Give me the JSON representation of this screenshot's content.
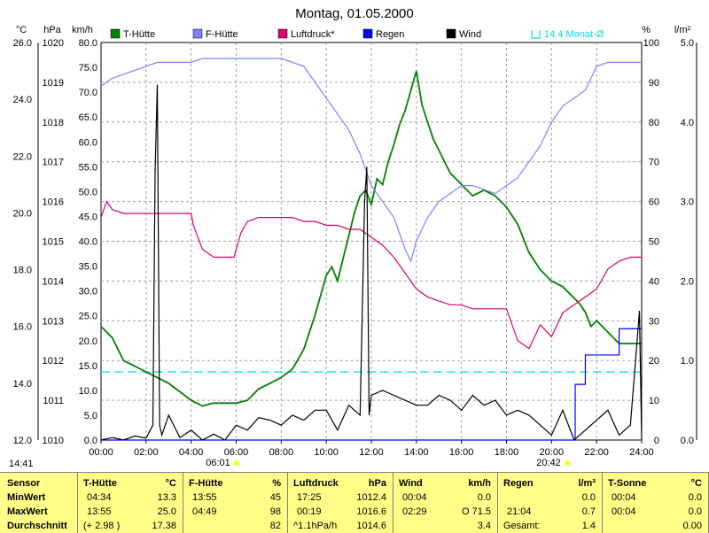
{
  "title": "Montag, 01.05.2000",
  "units": {
    "temp": "°C",
    "pressure": "hPa",
    "speed": "km/h",
    "humidity": "%",
    "rain": "l/m²"
  },
  "time_label": "14:41",
  "sunrise": "06:01",
  "sunset": "20:42",
  "colors": {
    "t_huette": "#008000",
    "f_huette": "#8080ff",
    "luftdruck": "#d8006c",
    "regen": "#0000ff",
    "wind": "#000000",
    "mean_line": "#00e0e0",
    "sun": "#ffff00",
    "summary_bg": "#ffff88"
  },
  "legend": [
    {
      "label": "T-Hütte",
      "color": "#008000"
    },
    {
      "label": "F-Hütte",
      "color": "#8080ff"
    },
    {
      "label": "Luftdruck*",
      "color": "#d8006c"
    },
    {
      "label": "Regen",
      "color": "#0000ff"
    },
    {
      "label": "Wind",
      "color": "#000000"
    },
    {
      "label": "14.4 Monat-Ø",
      "color": "#00e0e0"
    }
  ],
  "chart_data": {
    "type": "line",
    "x_ticks": [
      "00:00",
      "02:00",
      "04:00",
      "06:00",
      "08:00",
      "10:00",
      "12:00",
      "14:00",
      "16:00",
      "18:00",
      "20:00",
      "22:00",
      "24:00"
    ],
    "axes": {
      "temp_ticks": [
        "26.0",
        "24.0",
        "22.0",
        "20.0",
        "18.0",
        "16.0",
        "14.0",
        "12.0"
      ],
      "pressure_ticks": [
        "1020",
        "1019",
        "1018",
        "1017",
        "1016",
        "1015",
        "1014",
        "1013",
        "1012",
        "1011",
        "1010"
      ],
      "speed_ticks": [
        "80.0",
        "75.0",
        "70.0",
        "65.0",
        "60.0",
        "55.0",
        "50.0",
        "45.0",
        "40.0",
        "35.0",
        "30.0",
        "25.0",
        "20.0",
        "15.0",
        "10.0",
        "5.0",
        "0.0"
      ],
      "humidity_ticks": [
        "100",
        "90",
        "80",
        "70",
        "60",
        "50",
        "40",
        "30",
        "20",
        "10",
        "0"
      ],
      "rain_ticks": [
        "5.0",
        "4.0",
        "3.0",
        "2.0",
        "1.0",
        "0.0"
      ],
      "temp_range": [
        12,
        26
      ],
      "pressure_range": [
        1010,
        1020
      ],
      "speed_range": [
        0,
        80
      ],
      "humidity_range": [
        0,
        100
      ],
      "rain_range": [
        0,
        5
      ]
    },
    "grid": true,
    "monthly_mean_temp": 14.4,
    "series": [
      {
        "name": "T-Hütte",
        "axis": "temp",
        "color": "#008000",
        "x": [
          0,
          0.5,
          1,
          1.5,
          2,
          2.5,
          3,
          3.5,
          4,
          4.5,
          5,
          5.5,
          6,
          6.5,
          7,
          7.5,
          8,
          8.5,
          9,
          9.5,
          10,
          10.25,
          10.5,
          10.75,
          11,
          11.25,
          11.5,
          11.75,
          12,
          12.25,
          12.5,
          12.75,
          13,
          13.25,
          13.5,
          13.75,
          14,
          14.25,
          14.5,
          14.75,
          15,
          15.5,
          16,
          16.5,
          17,
          17.5,
          18,
          18.5,
          19,
          19.5,
          20,
          20.5,
          21,
          21.25,
          21.5,
          21.75,
          22,
          22.5,
          23,
          23.5,
          24
        ],
        "y": [
          16.0,
          15.6,
          14.8,
          14.6,
          14.4,
          14.2,
          14.0,
          13.7,
          13.4,
          13.2,
          13.3,
          13.3,
          13.3,
          13.4,
          13.8,
          14.0,
          14.2,
          14.5,
          15.2,
          16.4,
          17.8,
          18.1,
          17.6,
          18.4,
          19.2,
          20.0,
          20.6,
          20.8,
          20.3,
          21.2,
          21.0,
          21.8,
          22.4,
          23.1,
          23.6,
          24.3,
          25.0,
          23.8,
          23.2,
          22.6,
          22.2,
          21.4,
          21.0,
          20.6,
          20.8,
          20.6,
          20.2,
          19.6,
          18.6,
          18.0,
          17.6,
          17.4,
          17.0,
          16.8,
          16.5,
          16.0,
          16.2,
          15.8,
          15.4,
          15.4,
          15.4
        ]
      },
      {
        "name": "F-Hütte",
        "axis": "humidity",
        "color": "#8080ff",
        "x": [
          0,
          0.5,
          1,
          1.5,
          2,
          2.5,
          3,
          3.5,
          4,
          4.5,
          5,
          5.5,
          6,
          6.5,
          7,
          7.5,
          8,
          8.5,
          9,
          9.5,
          10,
          10.5,
          11,
          11.5,
          12,
          12.5,
          13,
          13.25,
          13.5,
          13.75,
          14,
          14.5,
          15,
          15.5,
          16,
          16.5,
          17,
          17.5,
          18,
          18.5,
          19,
          19.5,
          20,
          20.5,
          21,
          21.5,
          22,
          22.5,
          23,
          23.5,
          24
        ],
        "y": [
          89,
          91,
          92,
          93,
          94,
          95,
          95,
          95,
          95,
          96,
          96,
          96,
          96,
          96,
          96,
          96,
          96,
          95,
          94,
          90,
          86,
          82,
          78,
          72,
          64,
          60,
          56,
          52,
          48,
          45,
          50,
          56,
          60,
          62,
          64,
          64,
          63,
          62,
          64,
          66,
          70,
          74,
          80,
          84,
          86,
          88,
          94,
          95,
          95,
          95,
          95
        ]
      },
      {
        "name": "Luftdruck*",
        "axis": "pressure",
        "color": "#d8006c",
        "x": [
          0,
          0.25,
          0.5,
          1,
          1.5,
          2,
          2.5,
          3,
          3.5,
          4,
          4.1,
          4.5,
          5,
          5.5,
          5.9,
          6.2,
          6.5,
          7,
          7.5,
          8,
          8.5,
          9,
          9.5,
          10,
          10.5,
          11,
          11.5,
          12,
          12.5,
          13,
          13.5,
          14,
          14.5,
          15,
          15.5,
          16,
          16.5,
          17,
          17.5,
          18,
          18.5,
          19,
          19.5,
          20,
          20.5,
          21,
          21.5,
          22,
          22.5,
          23,
          23.5,
          24
        ],
        "y": [
          1015.6,
          1016.0,
          1015.8,
          1015.7,
          1015.7,
          1015.7,
          1015.7,
          1015.7,
          1015.7,
          1015.7,
          1015.4,
          1014.8,
          1014.6,
          1014.6,
          1014.6,
          1015.2,
          1015.5,
          1015.6,
          1015.6,
          1015.6,
          1015.6,
          1015.5,
          1015.5,
          1015.4,
          1015.4,
          1015.3,
          1015.3,
          1015.1,
          1014.9,
          1014.6,
          1014.2,
          1013.8,
          1013.6,
          1013.5,
          1013.4,
          1013.4,
          1013.3,
          1013.3,
          1013.3,
          1013.3,
          1012.5,
          1012.3,
          1012.9,
          1012.6,
          1013.2,
          1013.4,
          1013.6,
          1013.8,
          1014.3,
          1014.5,
          1014.6,
          1014.6
        ]
      },
      {
        "name": "Regen",
        "axis": "rain",
        "color": "#0000ff",
        "x": [
          0,
          21.0,
          21.05,
          21.5,
          22,
          22.5,
          23,
          23.5,
          24
        ],
        "y": [
          0,
          0,
          0.7,
          1.07,
          1.07,
          1.07,
          1.4,
          1.4,
          1.4
        ]
      },
      {
        "name": "Wind",
        "axis": "speed",
        "color": "#000000",
        "x": [
          0,
          0.5,
          1,
          1.5,
          2,
          2.3,
          2.4,
          2.5,
          2.6,
          2.7,
          3,
          3.5,
          4,
          4.5,
          5,
          5.5,
          6,
          6.5,
          7,
          7.5,
          8,
          8.5,
          9,
          9.5,
          10,
          10.5,
          11,
          11.5,
          11.7,
          11.8,
          11.9,
          12,
          12.5,
          13,
          13.5,
          14,
          14.5,
          15,
          15.5,
          16,
          16.5,
          17,
          17.5,
          18,
          18.5,
          19,
          19.5,
          20,
          20.5,
          21,
          21.5,
          22,
          22.5,
          23,
          23.5,
          23.8,
          23.9,
          24
        ],
        "y": [
          0,
          0.5,
          0,
          0.8,
          0.4,
          3,
          54,
          71.5,
          3,
          1,
          5,
          0.5,
          2,
          0,
          1.2,
          0,
          3,
          2,
          4.5,
          4,
          3,
          5,
          4,
          6,
          6,
          2,
          7,
          5,
          48,
          55,
          5,
          9,
          10,
          9,
          8,
          7,
          7,
          9,
          8,
          6,
          9,
          7,
          8,
          5,
          6,
          5,
          3,
          1,
          6,
          0,
          2,
          4,
          6,
          1,
          3,
          20,
          26,
          0
        ]
      }
    ]
  },
  "summary": {
    "row_labels": {
      "header": "Sensor",
      "min": "MinWert",
      "max": "MaxWert",
      "avg": "Durchschnitt"
    },
    "columns": [
      {
        "name": "T-Hütte",
        "unit": "°C",
        "min_time": "04:34",
        "min_value": "13.3",
        "max_time": "13:55",
        "max_value": "25.0",
        "avg_extra": "(+ 2.98 )",
        "avg_value": "17.38"
      },
      {
        "name": "F-Hütte",
        "unit": "%",
        "min_time": "13:55",
        "min_value": "45",
        "max_time": "04:49",
        "max_value": "98",
        "avg_extra": "",
        "avg_value": "82"
      },
      {
        "name": "Luftdruck",
        "unit": "hPa",
        "min_time": "17:25",
        "min_value": "1012.4",
        "max_time": "00:19",
        "max_value": "1016.6",
        "avg_extra": "^1.1hPa/h",
        "avg_value": "1014.6"
      },
      {
        "name": "Wind",
        "unit": "km/h",
        "min_time": "00:04",
        "min_value": "0.0",
        "max_time": "02:29",
        "max_value": "O 71.5",
        "avg_extra": "",
        "avg_value": "3.4"
      },
      {
        "name": "Regen",
        "unit": "l/m²",
        "min_time": "",
        "min_value": "0.0",
        "max_time": "21:04",
        "max_value": "0.7",
        "avg_extra": "Gesamt:",
        "avg_value": "1.4"
      },
      {
        "name": "T-Sonne",
        "unit": "°C",
        "min_time": "00:04",
        "min_value": "0.0",
        "max_time": "00:04",
        "max_value": "0.0",
        "avg_extra": "",
        "avg_value": "0.00"
      }
    ]
  }
}
